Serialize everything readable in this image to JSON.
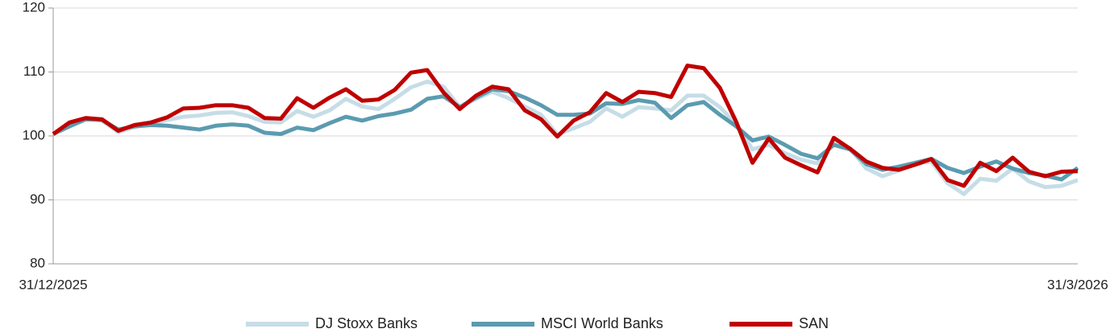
{
  "chart_data": {
    "type": "line",
    "categories": [
      "31/12/2025",
      null,
      null,
      null,
      null,
      null,
      null,
      null,
      null,
      null,
      null,
      null,
      null,
      null,
      null,
      null,
      null,
      null,
      null,
      null,
      null,
      null,
      null,
      null,
      null,
      null,
      null,
      null,
      null,
      null,
      null,
      null,
      null,
      null,
      null,
      null,
      null,
      null,
      null,
      null,
      null,
      null,
      null,
      null,
      null,
      null,
      null,
      null,
      null,
      null,
      null,
      null,
      null,
      null,
      null,
      null,
      null,
      null,
      null,
      null,
      null,
      null,
      null,
      "31/3/2026"
    ],
    "ylim": [
      80,
      120
    ],
    "yticks": [
      80,
      90,
      100,
      110,
      120
    ],
    "grid": true,
    "series": [
      {
        "name": "DJ Stoxx Banks",
        "color": "#c6dde7",
        "values": [
          100.2,
          101.8,
          102.8,
          102.4,
          100.6,
          101.4,
          101.9,
          102.5,
          103.0,
          103.2,
          103.6,
          103.7,
          103.1,
          102.2,
          102.1,
          103.9,
          103.0,
          104.0,
          105.8,
          104.6,
          104.2,
          105.8,
          107.6,
          108.5,
          107.7,
          104.5,
          105.8,
          106.9,
          105.9,
          104.6,
          103.3,
          100.2,
          101.2,
          102.2,
          104.3,
          103.0,
          104.5,
          104.3,
          104.0,
          106.3,
          106.3,
          104.5,
          101.8,
          97.9,
          98.6,
          97.3,
          96.3,
          95.7,
          99.1,
          98.1,
          94.9,
          93.7,
          94.6,
          95.6,
          96.0,
          92.6,
          90.9,
          93.3,
          93.0,
          94.9,
          92.9,
          92.0,
          92.2,
          93.1
        ]
      },
      {
        "name": "MSCI World Banks",
        "color": "#5b9bb0",
        "values": [
          100.3,
          101.5,
          102.6,
          102.5,
          101.0,
          101.5,
          101.7,
          101.6,
          101.3,
          101.0,
          101.6,
          101.8,
          101.6,
          100.5,
          100.3,
          101.3,
          100.9,
          102.0,
          103.0,
          102.4,
          103.1,
          103.5,
          104.1,
          105.8,
          106.2,
          104.5,
          106.0,
          107.3,
          107.0,
          106.0,
          104.8,
          103.3,
          103.3,
          103.5,
          105.1,
          105.0,
          105.6,
          105.2,
          102.8,
          104.8,
          105.3,
          103.3,
          101.5,
          99.3,
          99.9,
          98.6,
          97.2,
          96.5,
          98.6,
          97.9,
          95.6,
          94.7,
          95.2,
          95.8,
          96.4,
          95.0,
          94.2,
          95.2,
          96.0,
          94.9,
          94.2,
          93.8,
          93.2,
          95.0
        ]
      },
      {
        "name": "SAN",
        "color": "#c00000",
        "values": [
          100.3,
          102.1,
          102.8,
          102.6,
          100.8,
          101.7,
          102.1,
          102.9,
          104.3,
          104.4,
          104.8,
          104.8,
          104.4,
          102.8,
          102.7,
          105.9,
          104.4,
          106.0,
          107.3,
          105.5,
          105.7,
          107.2,
          109.9,
          110.3,
          106.8,
          104.2,
          106.3,
          107.7,
          107.3,
          104.0,
          102.6,
          99.9,
          102.4,
          103.7,
          106.7,
          105.3,
          106.9,
          106.7,
          106.1,
          111.0,
          110.6,
          107.5,
          102.2,
          95.8,
          99.6,
          96.6,
          95.4,
          94.3,
          99.7,
          98.0,
          96.0,
          95.0,
          94.7,
          95.5,
          96.4,
          93.1,
          92.2,
          95.8,
          94.5,
          96.6,
          94.4,
          93.7,
          94.4,
          94.5
        ]
      }
    ]
  }
}
